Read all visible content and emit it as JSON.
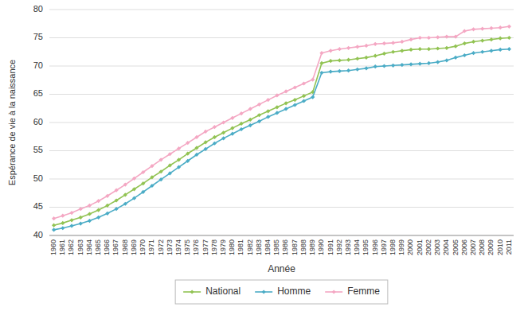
{
  "chart_data": {
    "type": "line",
    "x_label": "Année",
    "y_label": "Espérance de vie à la naissance",
    "x": [
      1960,
      1961,
      1962,
      1963,
      1964,
      1965,
      1966,
      1967,
      1968,
      1969,
      1970,
      1971,
      1972,
      1973,
      1974,
      1975,
      1976,
      1977,
      1978,
      1979,
      1980,
      1981,
      1982,
      1983,
      1984,
      1985,
      1986,
      1987,
      1988,
      1989,
      1990,
      1991,
      1992,
      1993,
      1994,
      1995,
      1996,
      1997,
      1998,
      1999,
      2000,
      2001,
      2002,
      2003,
      2004,
      2005,
      2006,
      2007,
      2008,
      2009,
      2010,
      2011
    ],
    "xlim": [
      1959.5,
      2011.5
    ],
    "xticks": [
      1960,
      1961,
      1962,
      1963,
      1964,
      1965,
      1966,
      1967,
      1968,
      1969,
      1970,
      1971,
      1972,
      1973,
      1974,
      1975,
      1976,
      1977,
      1978,
      1979,
      1980,
      1981,
      1982,
      1983,
      1984,
      1985,
      1986,
      1987,
      1988,
      1989,
      1990,
      1991,
      1992,
      1993,
      1994,
      1995,
      1996,
      1997,
      1998,
      1999,
      2000,
      2001,
      2002,
      2003,
      2004,
      2005,
      2006,
      2007,
      2008,
      2009,
      2010,
      2011
    ],
    "ylim": [
      40,
      80
    ],
    "yticks": [
      40,
      45,
      50,
      55,
      60,
      65,
      70,
      75,
      80
    ],
    "grid": true,
    "legend": "bottom",
    "marker": "diamond",
    "series": [
      {
        "name": "National",
        "color": "#92c353",
        "values": [
          41.8,
          42.2,
          42.7,
          43.2,
          43.8,
          44.5,
          45.3,
          46.2,
          47.2,
          48.2,
          49.2,
          50.3,
          51.3,
          52.4,
          53.4,
          54.5,
          55.5,
          56.5,
          57.4,
          58.2,
          59.0,
          59.8,
          60.5,
          61.3,
          62.0,
          62.7,
          63.4,
          64.0,
          64.7,
          65.4,
          70.5,
          70.9,
          71.0,
          71.1,
          71.3,
          71.5,
          71.8,
          72.2,
          72.5,
          72.7,
          72.9,
          73.0,
          73.0,
          73.1,
          73.2,
          73.5,
          74.0,
          74.3,
          74.5,
          74.7,
          74.9,
          75.0
        ]
      },
      {
        "name": "Homme",
        "color": "#4bacc6",
        "values": [
          41.0,
          41.3,
          41.7,
          42.1,
          42.6,
          43.2,
          43.9,
          44.7,
          45.6,
          46.6,
          47.7,
          48.8,
          49.9,
          51.0,
          52.1,
          53.2,
          54.3,
          55.3,
          56.3,
          57.2,
          58.0,
          58.8,
          59.5,
          60.2,
          61.0,
          61.7,
          62.4,
          63.1,
          63.8,
          64.5,
          68.8,
          69.0,
          69.1,
          69.2,
          69.4,
          69.6,
          69.9,
          70.0,
          70.1,
          70.2,
          70.3,
          70.4,
          70.5,
          70.7,
          71.0,
          71.5,
          71.9,
          72.3,
          72.5,
          72.7,
          72.9,
          73.0
        ]
      },
      {
        "name": "Femme",
        "color": "#f4a7c3",
        "values": [
          43.0,
          43.5,
          44.0,
          44.7,
          45.3,
          46.1,
          47.0,
          48.0,
          49.0,
          50.1,
          51.2,
          52.3,
          53.4,
          54.4,
          55.4,
          56.4,
          57.4,
          58.4,
          59.2,
          60.0,
          60.8,
          61.6,
          62.4,
          63.2,
          64.0,
          64.8,
          65.5,
          66.2,
          66.9,
          67.6,
          72.3,
          72.7,
          73.0,
          73.2,
          73.4,
          73.6,
          73.9,
          74.0,
          74.1,
          74.3,
          74.7,
          75.0,
          75.0,
          75.1,
          75.2,
          75.2,
          76.2,
          76.5,
          76.6,
          76.7,
          76.8,
          77.0
        ]
      }
    ]
  }
}
